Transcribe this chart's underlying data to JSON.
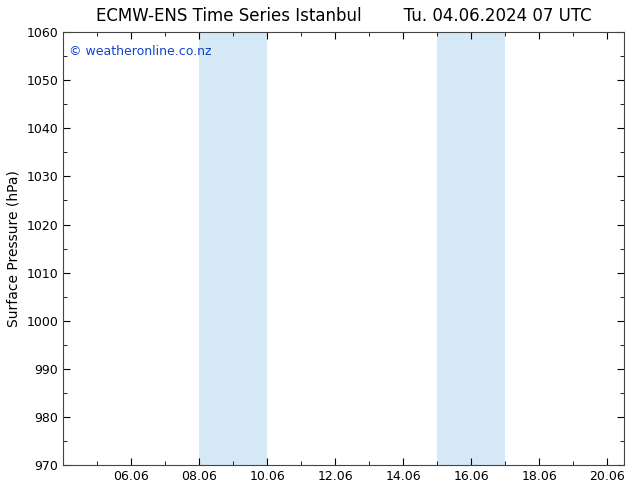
{
  "title_left": "ECMW-ENS Time Series Istanbul",
  "title_right": "Tu. 04.06.2024 07 UTC",
  "ylabel": "Surface Pressure (hPa)",
  "ylim": [
    970,
    1060
  ],
  "yticks": [
    970,
    980,
    990,
    1000,
    1010,
    1020,
    1030,
    1040,
    1050,
    1060
  ],
  "xlim_start": 4.0,
  "xlim_end": 20.5,
  "xtick_positions": [
    6,
    8,
    10,
    12,
    14,
    16,
    18,
    20
  ],
  "xtick_labels": [
    "06.06",
    "08.06",
    "10.06",
    "12.06",
    "14.06",
    "16.06",
    "18.06",
    "20.06"
  ],
  "shaded_bands": [
    {
      "x_start": 8.0,
      "x_end": 10.0
    },
    {
      "x_start": 15.0,
      "x_end": 17.0
    }
  ],
  "band_color": "#d4e8f5",
  "background_color": "#ffffff",
  "plot_bg_color": "#ffffff",
  "title_fontsize": 12,
  "axis_label_fontsize": 10,
  "tick_fontsize": 9,
  "copyright_text": "© weatheronline.co.nz",
  "copyright_color": "#1144cc",
  "spine_color": "#444444"
}
